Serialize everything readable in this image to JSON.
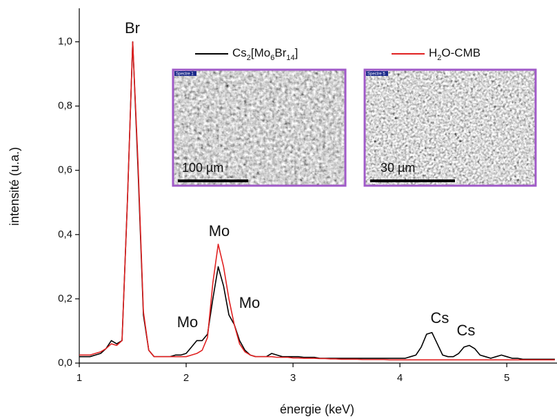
{
  "chart_data": {
    "type": "line",
    "xlabel": "énergie (keV)",
    "ylabel": "intensité (u.a.)",
    "xlim": [
      1,
      5.47
    ],
    "ylim": [
      0,
      1.1
    ],
    "xticks": [
      1,
      2,
      3,
      4,
      5
    ],
    "yticks": [
      {
        "value": 0,
        "label": "0,0"
      },
      {
        "value": 0.2,
        "label": "0,2"
      },
      {
        "value": 0.4,
        "label": "0,4"
      },
      {
        "value": 0.6,
        "label": "0,6"
      },
      {
        "value": 0.8,
        "label": "0,8"
      },
      {
        "value": 1.0,
        "label": "1,0"
      }
    ],
    "x": [
      1,
      1.05,
      1.1,
      1.15,
      1.2,
      1.25,
      1.3,
      1.35,
      1.4,
      1.45,
      1.5,
      1.55,
      1.6,
      1.65,
      1.7,
      1.75,
      1.8,
      1.85,
      1.9,
      1.95,
      2,
      2.05,
      2.1,
      2.15,
      2.2,
      2.25,
      2.3,
      2.35,
      2.4,
      2.45,
      2.5,
      2.55,
      2.6,
      2.65,
      2.7,
      2.75,
      2.8,
      2.85,
      2.9,
      2.95,
      3,
      3.05,
      3.1,
      3.15,
      3.2,
      3.25,
      3.3,
      3.35,
      3.4,
      3.45,
      3.5,
      3.55,
      3.6,
      3.65,
      3.7,
      3.75,
      3.8,
      3.85,
      3.9,
      3.95,
      4,
      4.05,
      4.1,
      4.15,
      4.2,
      4.25,
      4.3,
      4.35,
      4.4,
      4.45,
      4.5,
      4.55,
      4.6,
      4.65,
      4.7,
      4.75,
      4.8,
      4.85,
      4.9,
      4.95,
      5,
      5.05,
      5.1,
      5.15,
      5.2,
      5.25,
      5.3,
      5.35,
      5.4,
      5.45
    ],
    "series": [
      {
        "name": "Cs2[Mo6Br14]",
        "color": "#000000",
        "values": [
          0.02,
          0.02,
          0.02,
          0.025,
          0.03,
          0.045,
          0.07,
          0.06,
          0.07,
          0.5,
          1.0,
          0.6,
          0.15,
          0.04,
          0.02,
          0.02,
          0.02,
          0.02,
          0.025,
          0.025,
          0.03,
          0.05,
          0.07,
          0.07,
          0.09,
          0.2,
          0.3,
          0.24,
          0.15,
          0.12,
          0.07,
          0.04,
          0.025,
          0.02,
          0.02,
          0.02,
          0.03,
          0.025,
          0.02,
          0.02,
          0.02,
          0.02,
          0.018,
          0.018,
          0.018,
          0.015,
          0.015,
          0.015,
          0.015,
          0.015,
          0.015,
          0.015,
          0.015,
          0.015,
          0.015,
          0.015,
          0.015,
          0.015,
          0.015,
          0.015,
          0.015,
          0.015,
          0.02,
          0.025,
          0.05,
          0.09,
          0.095,
          0.06,
          0.025,
          0.02,
          0.02,
          0.03,
          0.05,
          0.055,
          0.045,
          0.025,
          0.02,
          0.015,
          0.02,
          0.025,
          0.02,
          0.015,
          0.015,
          0.012,
          0.012,
          0.012,
          0.012,
          0.012,
          0.012,
          0.012
        ]
      },
      {
        "name": "H2O-CMB",
        "color": "#e02020",
        "values": [
          0.025,
          0.025,
          0.025,
          0.03,
          0.035,
          0.045,
          0.06,
          0.055,
          0.07,
          0.5,
          1.0,
          0.62,
          0.16,
          0.04,
          0.02,
          0.02,
          0.02,
          0.02,
          0.02,
          0.02,
          0.02,
          0.025,
          0.03,
          0.04,
          0.08,
          0.25,
          0.37,
          0.3,
          0.2,
          0.12,
          0.06,
          0.035,
          0.025,
          0.02,
          0.02,
          0.02,
          0.02,
          0.018,
          0.018,
          0.018,
          0.016,
          0.016,
          0.015,
          0.015,
          0.015,
          0.014,
          0.014,
          0.013,
          0.013,
          0.012,
          0.012,
          0.012,
          0.012,
          0.011,
          0.011,
          0.011,
          0.011,
          0.011,
          0.01,
          0.01,
          0.01,
          0.01,
          0.01,
          0.01,
          0.01,
          0.01,
          0.01,
          0.01,
          0.01,
          0.01,
          0.01,
          0.01,
          0.01,
          0.01,
          0.01,
          0.01,
          0.01,
          0.01,
          0.01,
          0.01,
          0.01,
          0.01,
          0.01,
          0.01,
          0.01,
          0.01,
          0.01,
          0.01,
          0.01,
          0.01
        ]
      }
    ],
    "annotations": [
      "Br",
      "Mo",
      "Mo",
      "Mo",
      "Cs",
      "Cs"
    ],
    "insets": [
      {
        "label": "Spectre 1",
        "scale_label": "100 µm"
      },
      {
        "label": "Spectre 5",
        "scale_label": "30 µm"
      }
    ]
  }
}
